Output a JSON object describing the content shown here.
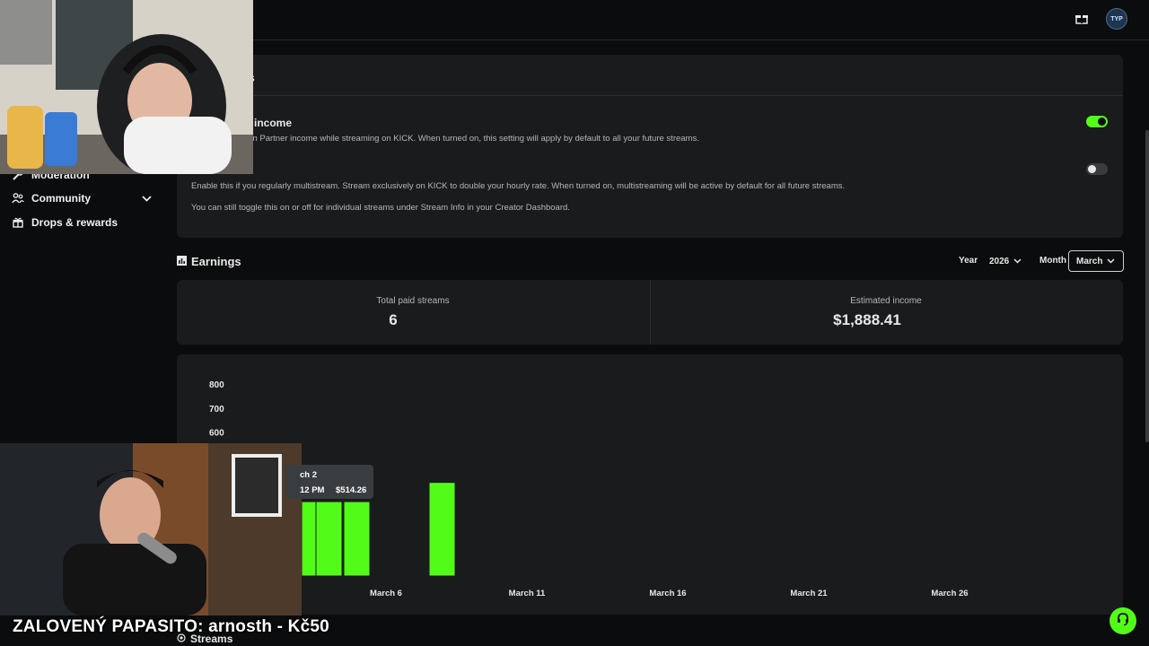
{
  "header": {
    "icons": [
      "gift-icon",
      "avatar"
    ],
    "avatar_initials": "TYP"
  },
  "sidebar": {
    "items": [
      {
        "label": "Moderation",
        "icon": "wrench-icon"
      },
      {
        "label": "Community",
        "icon": "users-icon"
      },
      {
        "label": "Drops & rewards",
        "icon": "gift-box-icon"
      }
    ]
  },
  "settings": {
    "title": "ings",
    "partner_income": {
      "label": "income",
      "description": "arn Partner income while streaming on KICK. When turned on, this setting will apply by default to all your future streams.",
      "enabled": true
    },
    "multistream": {
      "description": "Enable this if you regularly multistream. Stream exclusively on KICK to double your hourly rate. When turned on, multistreaming will be active by default for all future streams.",
      "note": "You can still toggle this on or off for individual streams under Stream Info in your Creator Dashboard.",
      "enabled": false
    }
  },
  "earnings": {
    "title": "Earnings",
    "year_label": "Year",
    "year_value": "2026",
    "month_label": "Month",
    "month_value": "March",
    "total_paid_streams_label": "Total paid streams",
    "total_paid_streams_value": "6",
    "estimated_income_label": "Estimated income",
    "estimated_income_value": "$1,888.41"
  },
  "tooltip": {
    "title": "ch 2",
    "time": "12 PM",
    "amount": "$514.26"
  },
  "chart_data": {
    "type": "bar",
    "ylim": [
      0,
      800
    ],
    "y_ticks": [
      600,
      700,
      800
    ],
    "x_tick_labels": [
      "March 6",
      "March 11",
      "March 16",
      "March 21",
      "March 26"
    ],
    "bars": [
      {
        "date": "March 1",
        "value": 310
      },
      {
        "date": "March 2",
        "value": 310
      },
      {
        "date": "March 2",
        "value": 310
      },
      {
        "date": "March 5",
        "value": 390
      }
    ],
    "bar_color": "#53fc18"
  },
  "legend": {
    "label": "Streams"
  },
  "overlay": {
    "text": "ZALOVENÝ PAPASITO: arnosth - Kč50"
  },
  "colors": {
    "accent": "#53fc18",
    "panel": "#191b1d",
    "background": "#0b0c0d"
  }
}
